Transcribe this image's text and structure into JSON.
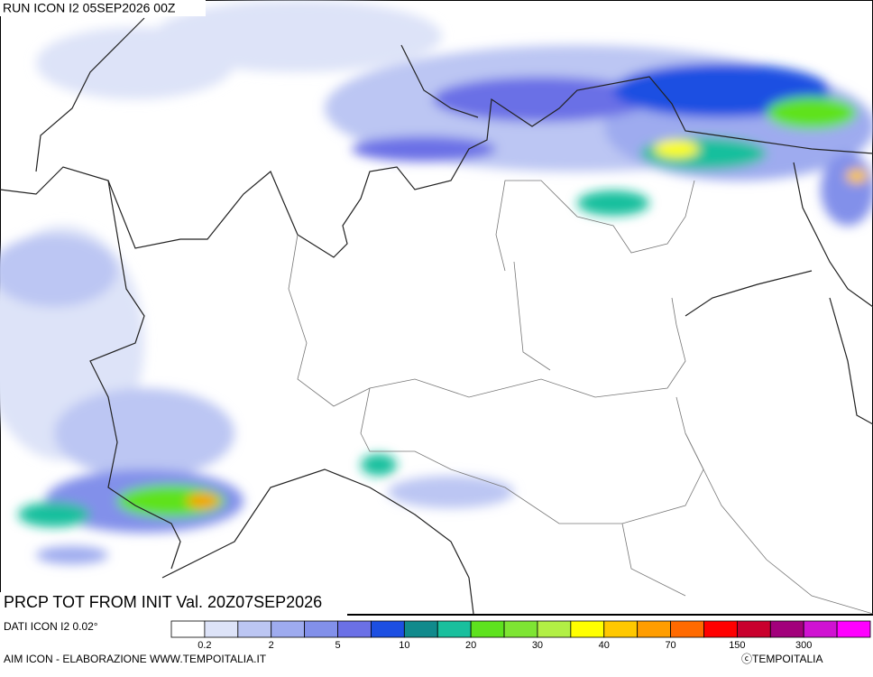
{
  "header": {
    "run": "RUN ICON I2 05SEP2026 00Z"
  },
  "caption": {
    "title": "PRCP TOT FROM INIT Val. 20Z07SEP2026",
    "source": "DATI ICON I2 0.02°"
  },
  "legend": {
    "colors": [
      "#ffffff",
      "#dde3f8",
      "#bcc6f3",
      "#9eabef",
      "#8290ea",
      "#6b70e6",
      "#1d4fe2",
      "#118a8c",
      "#19bf9d",
      "#5ee21e",
      "#7ee533",
      "#b2ef45",
      "#ffff00",
      "#ffc800",
      "#ff9d00",
      "#ff6a00",
      "#ff0000",
      "#c9002d",
      "#a2007b",
      "#d012d2",
      "#ff00ff"
    ],
    "labels": [
      "0.2",
      "2",
      "5",
      "10",
      "20",
      "30",
      "40",
      "70",
      "150",
      "300"
    ],
    "label_boundaries": [
      1,
      3,
      5,
      7,
      9,
      11,
      13,
      15,
      17,
      19
    ]
  },
  "footer": {
    "credit": "AIM ICON - ELABORAZIONE WWW.TEMPOITALIA.IT",
    "copyright": "ⓒTEMPOITALIA"
  }
}
